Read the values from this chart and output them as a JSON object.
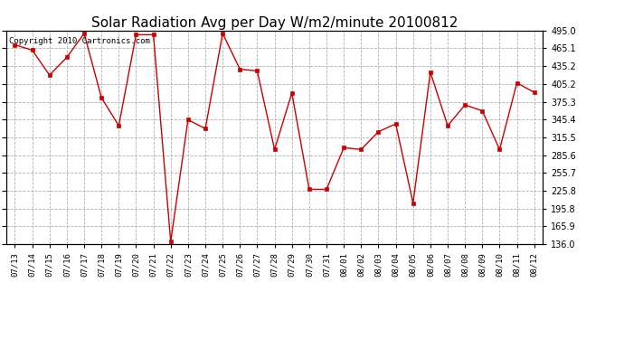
{
  "title": "Solar Radiation Avg per Day W/m2/minute 20100812",
  "copyright": "Copyright 2010 Cartronics.com",
  "dates": [
    "07/13",
    "07/14",
    "07/15",
    "07/16",
    "07/17",
    "07/18",
    "07/19",
    "07/20",
    "07/21",
    "07/22",
    "07/23",
    "07/24",
    "07/25",
    "07/26",
    "07/27",
    "07/28",
    "07/29",
    "07/30",
    "07/31",
    "08/01",
    "08/02",
    "08/03",
    "08/04",
    "08/05",
    "08/06",
    "08/07",
    "08/08",
    "08/09",
    "08/10",
    "08/11",
    "08/12"
  ],
  "values": [
    471.0,
    462.0,
    420.0,
    450.0,
    490.0,
    382.0,
    335.0,
    488.0,
    488.0,
    140.0,
    345.0,
    330.0,
    490.0,
    430.0,
    427.0,
    295.0,
    390.0,
    228.0,
    228.0,
    298.0,
    295.0,
    325.0,
    338.0,
    205.0,
    425.0,
    335.0,
    370.0,
    360.0,
    295.0,
    407.0,
    391.0
  ],
  "line_color": "#cc0000",
  "marker": "s",
  "marker_size": 2.5,
  "background_color": "#ffffff",
  "grid_color": "#b0b0b0",
  "ylim": [
    136.0,
    495.0
  ],
  "yticks": [
    136.0,
    165.9,
    195.8,
    225.8,
    255.7,
    285.6,
    315.5,
    345.4,
    375.3,
    405.2,
    435.2,
    465.1,
    495.0
  ],
  "title_fontsize": 11,
  "copyright_fontsize": 6.5,
  "tick_fontsize": 7,
  "xtick_fontsize": 6.5
}
